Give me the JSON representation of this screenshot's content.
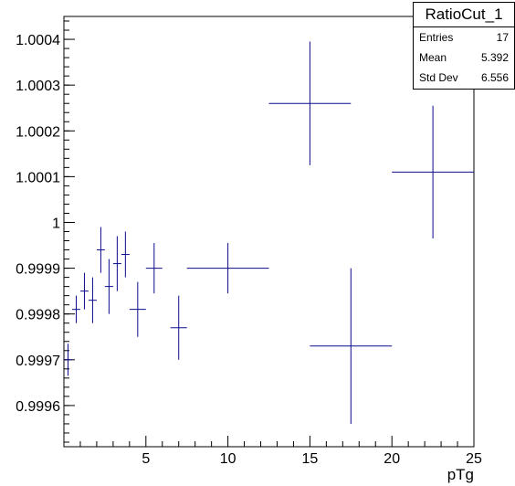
{
  "stats": {
    "title": "RatioCut_1",
    "rows": [
      {
        "label": "Entries",
        "value": "17"
      },
      {
        "label": "Mean",
        "value": "5.392"
      },
      {
        "label": "Std Dev",
        "value": "6.556"
      }
    ]
  },
  "chart_data": {
    "type": "scatter",
    "title": "",
    "xlabel": "pTg",
    "ylabel": "",
    "xlim": [
      0,
      25
    ],
    "ylim": [
      0.99951,
      1.00045
    ],
    "grid": false,
    "legend": "none",
    "x_ticks": [
      5,
      10,
      15,
      20,
      25
    ],
    "x_tick_labels": [
      "5",
      "10",
      "15",
      "20",
      "25"
    ],
    "y_ticks": [
      0.9996,
      0.9997,
      0.9998,
      0.9999,
      1.0,
      1.0001,
      1.0002,
      1.0003,
      1.0004
    ],
    "y_tick_labels": [
      "0.9996",
      "0.9997",
      "0.9998",
      "0.9999",
      "1",
      "1.0001",
      "1.0002",
      "1.0003",
      "1.0004"
    ],
    "color": "#0b0b8c",
    "points": [
      {
        "x": 0.25,
        "xerr": 0.25,
        "y": 0.9997,
        "yerr": 3.5e-05
      },
      {
        "x": 0.75,
        "xerr": 0.25,
        "y": 0.99981,
        "yerr": 3e-05
      },
      {
        "x": 1.25,
        "xerr": 0.25,
        "y": 0.99985,
        "yerr": 4e-05
      },
      {
        "x": 1.75,
        "xerr": 0.25,
        "y": 0.99983,
        "yerr": 5e-05
      },
      {
        "x": 2.25,
        "xerr": 0.25,
        "y": 0.99994,
        "yerr": 5e-05
      },
      {
        "x": 2.75,
        "xerr": 0.25,
        "y": 0.99986,
        "yerr": 6e-05
      },
      {
        "x": 3.25,
        "xerr": 0.25,
        "y": 0.99991,
        "yerr": 6e-05
      },
      {
        "x": 3.75,
        "xerr": 0.25,
        "y": 0.99993,
        "yerr": 5e-05
      },
      {
        "x": 4.5,
        "xerr": 0.5,
        "y": 0.99981,
        "yerr": 6e-05
      },
      {
        "x": 5.5,
        "xerr": 0.5,
        "y": 0.9999,
        "yerr": 5.5e-05
      },
      {
        "x": 7.0,
        "xerr": 0.5,
        "y": 0.99977,
        "yerr": 7e-05
      },
      {
        "x": 10.0,
        "xerr": 2.5,
        "y": 0.9999,
        "yerr": 5.5e-05
      },
      {
        "x": 15.0,
        "xerr": 2.5,
        "y": 1.00026,
        "yerr": 0.000135
      },
      {
        "x": 17.5,
        "xerr": 2.5,
        "y": 0.99973,
        "yerr": 0.00017
      },
      {
        "x": 22.5,
        "xerr": 2.5,
        "y": 1.00011,
        "yerr": 0.000145
      }
    ]
  }
}
